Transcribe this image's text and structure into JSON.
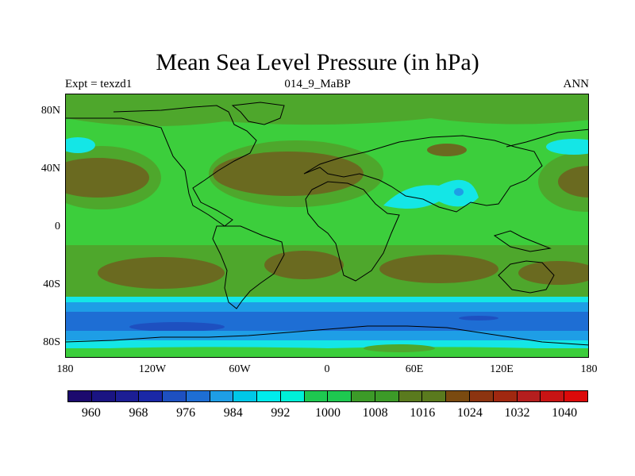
{
  "title": "Mean Sea Level Pressure (in hPa)",
  "subtitle_left": "Expt = texzd1",
  "subtitle_center": "014_9_MaBP",
  "subtitle_right": "ANN",
  "y_ticks": [
    "80N",
    "40N",
    "0",
    "40S",
    "80S"
  ],
  "x_ticks": [
    "180",
    "120W",
    "60W",
    "0",
    "60E",
    "120E",
    "180"
  ],
  "colorbar": {
    "labels": [
      "960",
      "968",
      "976",
      "984",
      "992",
      "1000",
      "1008",
      "1016",
      "1024",
      "1032",
      "1040"
    ],
    "colors": [
      "#1c0a6e",
      "#1a1482",
      "#1c1e94",
      "#1a28a6",
      "#1e50c0",
      "#1e6ed4",
      "#1e9ee6",
      "#00c8e8",
      "#00ecec",
      "#00f0d8",
      "#1ec850",
      "#1ec850",
      "#3c9a28",
      "#3c9a28",
      "#5a7a1e",
      "#5a7a1e",
      "#7a4a10",
      "#8c3410",
      "#a02810",
      "#b41e1e",
      "#c81414",
      "#dc0a0a"
    ]
  },
  "legend_colors": {
    "land_bg": "#3cce3c",
    "high_green": "#4ea72c",
    "high_brown": "#6a6a20",
    "cyan": "#14e6e6",
    "blue_light": "#1e9ee6",
    "blue_mid": "#1e6ed4",
    "blue_dark": "#1e50c0",
    "coast": "#000000"
  }
}
